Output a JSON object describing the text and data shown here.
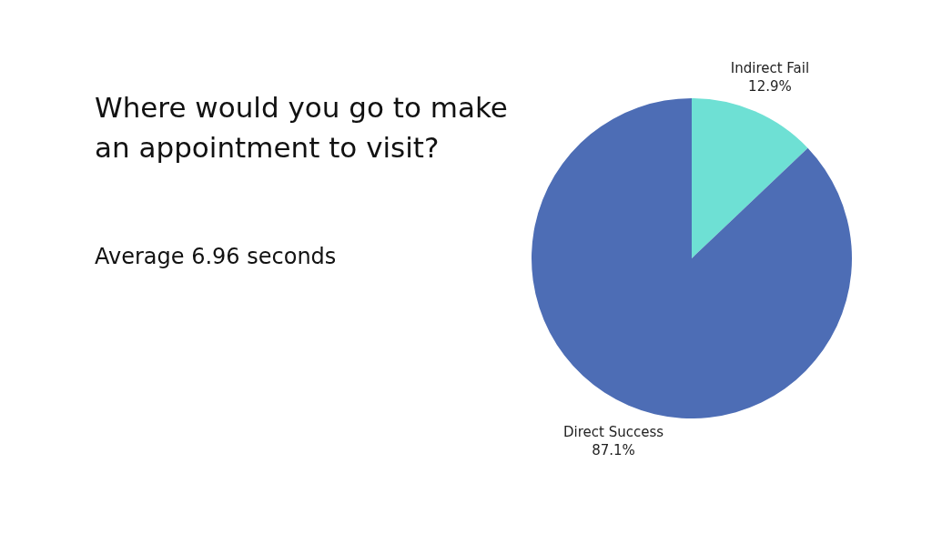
{
  "chart_data": {
    "type": "pie",
    "title": "Where would you go to make an appointment to visit?",
    "subtitle": "Average 6.96 seconds",
    "categories": [
      "Indirect Fail",
      "Direct Success"
    ],
    "values": [
      12.9,
      87.1
    ],
    "colors": [
      "#6ee0d4",
      "#4d6db5"
    ],
    "value_labels": [
      "12.9%",
      "87.1%"
    ],
    "legend": false
  }
}
